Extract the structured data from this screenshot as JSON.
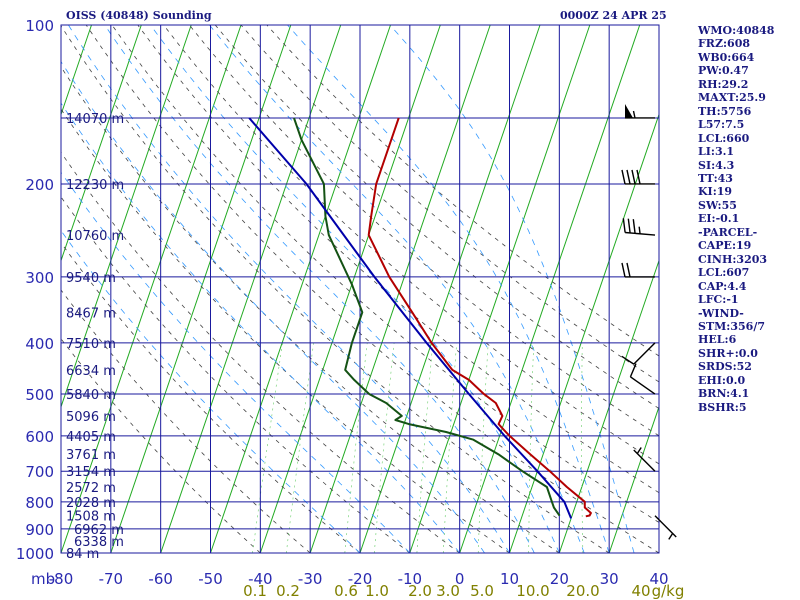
{
  "header": {
    "title": "OISS (40848) Sounding",
    "datetime": "0000Z 24 APR 25"
  },
  "sidebar": {
    "lines": [
      "WMO:40848",
      "FRZ:608",
      "WB0:664",
      "PW:0.47",
      "RH:29.2",
      "MAXT:25.9",
      "TH:5756",
      "L57:7.5",
      "LCL:660",
      "LI:3.1",
      "SI:4.3",
      "TT:43",
      "KI:19",
      "SW:55",
      "EI:-0.1",
      "-PARCEL-",
      "CAPE:19",
      "CINH:3203",
      "LCL:607",
      "CAP:4.4",
      "LFC:-1",
      "-WIND-",
      "STM:356/7",
      "HEL:6",
      "SHR+:0.0",
      "SRDS:52",
      "EHI:0.0",
      "BRN:4.1",
      "BSHR:5"
    ]
  },
  "colors": {
    "background": "#ffffff",
    "grid": "#1a1a9e",
    "axis_text": "#2a2ab0",
    "height_text": "#1a1a80",
    "isotherm": "#22aa22",
    "dry_adiabat": "#444444",
    "moist_adiabat": "#3399ff",
    "mixing_ratio": "#66cc66",
    "temperature": "#b30000",
    "dewpoint": "#145214",
    "parcel": "#0000aa",
    "wind_barb": "#000000",
    "mixing_label": "#808000"
  },
  "chart_data": {
    "type": "line",
    "title": "OISS (40848) Sounding",
    "xlabel": "",
    "ylabel": "mb",
    "x_unit": "°C",
    "y_scale": "log",
    "xlim": [
      -80,
      40
    ],
    "ylim": [
      1000,
      100
    ],
    "x_ticks": [
      -80,
      -70,
      -60,
      -50,
      -40,
      -30,
      -20,
      -10,
      0,
      10,
      20,
      30,
      40
    ],
    "x_tick_labels": [
      "-80",
      "-70",
      "-60",
      "-50",
      "-40",
      "-30",
      "-20",
      "-10",
      "0",
      "10",
      "20",
      "30",
      "40"
    ],
    "y_ticks": [
      100,
      200,
      300,
      400,
      500,
      600,
      700,
      800,
      900,
      1000
    ],
    "y_tick_labels": [
      "100",
      "200",
      "300",
      "400",
      "500",
      "600",
      "700",
      "800",
      "900",
      "1000"
    ],
    "y_unit_label": "mb",
    "skew_per_decade": 180,
    "height_labels": [
      {
        "p": 150,
        "label": "14070 m"
      },
      {
        "p": 200,
        "label": "12230 m"
      },
      {
        "p": 250,
        "label": "10760 m"
      },
      {
        "p": 300,
        "label": "9540 m"
      },
      {
        "p": 350,
        "label": "8467 m"
      },
      {
        "p": 400,
        "label": "7510 m"
      },
      {
        "p": 450,
        "label": "6634 m"
      },
      {
        "p": 500,
        "label": "5840 m"
      },
      {
        "p": 550,
        "label": "5096 m"
      },
      {
        "p": 600,
        "label": "4405 m"
      },
      {
        "p": 650,
        "label": "3761 m"
      },
      {
        "p": 700,
        "label": "3154 m"
      },
      {
        "p": 750,
        "label": "2572 m"
      },
      {
        "p": 800,
        "label": "2028 m"
      },
      {
        "p": 850,
        "label": "1508 m"
      },
      {
        "p": 900,
        "label": "6962 m"
      },
      {
        "p": 950,
        "label": "6338 m"
      },
      {
        "p": 1000,
        "label": "84 m"
      }
    ],
    "mixing_ratio_labels": [
      "0.1",
      "0.2",
      "0.6",
      "1.0",
      "2.0",
      "3.0",
      "5.0",
      "10.0",
      "20.0",
      "40",
      "g/kg"
    ],
    "isotherms": [
      -160,
      -150,
      -140,
      -130,
      -120,
      -110,
      -100,
      -90,
      -80,
      -70,
      -60,
      -50,
      -40,
      -30,
      -20,
      -10,
      0,
      10,
      20,
      30,
      40
    ],
    "dry_adiabats_theta_c": [
      -40,
      -30,
      -20,
      -10,
      0,
      10,
      20,
      30,
      40,
      50,
      60,
      70,
      80,
      90,
      100,
      110
    ],
    "moist_adiabats_c": [
      -20,
      -10,
      0,
      5,
      10,
      15,
      20,
      25,
      30,
      35
    ],
    "mixing_ratios_gkg": [
      0.1,
      0.2,
      0.6,
      1.0,
      2.0,
      3.0,
      5.0,
      10.0,
      20.0
    ],
    "series": [
      {
        "name": "",
        "role": "temperature",
        "p": [
          852,
          849,
          840,
          820,
          800,
          750,
          700,
          650,
          600,
          580,
          570,
          550,
          520,
          500,
          470,
          450,
          400,
          350,
          300,
          250,
          230,
          200,
          150
        ],
        "t": [
          22.8,
          23.5,
          23.6,
          22,
          21.6,
          17,
          12.5,
          7.4,
          2,
          0,
          -1,
          -0.8,
          -3,
          -6,
          -10,
          -14,
          -20,
          -26,
          -33,
          -40,
          -40.8,
          -42,
          -42
        ]
      },
      {
        "name": "",
        "role": "dewpoint",
        "p": [
          850,
          820,
          800,
          750,
          700,
          650,
          610,
          590,
          570,
          560,
          550,
          520,
          500,
          470,
          450,
          400,
          350,
          310,
          250,
          230,
          200,
          165,
          150
        ],
        "t": [
          17.5,
          15.8,
          15,
          13,
          7,
          1,
          -5,
          -11,
          -19,
          -22,
          -21,
          -25,
          -29,
          -33,
          -35.5,
          -36,
          -36,
          -40,
          -48,
          -50,
          -52.5,
          -60,
          -63
        ]
      },
      {
        "name": "",
        "role": "parcel",
        "p": [
          860,
          800,
          700,
          600,
          500,
          400,
          300,
          250,
          200,
          150
        ],
        "t": [
          20,
          17.5,
          10,
          1,
          -9,
          -21,
          -36,
          -45,
          -56,
          -72
        ]
      }
    ],
    "wind_barbs": [
      {
        "p": 150,
        "dir": 270,
        "kt": 55
      },
      {
        "p": 200,
        "dir": 270,
        "kt": 40
      },
      {
        "p": 250,
        "dir": 275,
        "kt": 35
      },
      {
        "p": 300,
        "dir": 270,
        "kt": 20
      },
      {
        "p": 400,
        "dir": 225,
        "kt": 10
      },
      {
        "p": 500,
        "dir": 305,
        "kt": 10
      },
      {
        "p": 700,
        "dir": 315,
        "kt": 5
      },
      {
        "p": 850,
        "dir": 135,
        "kt": 5
      }
    ]
  }
}
